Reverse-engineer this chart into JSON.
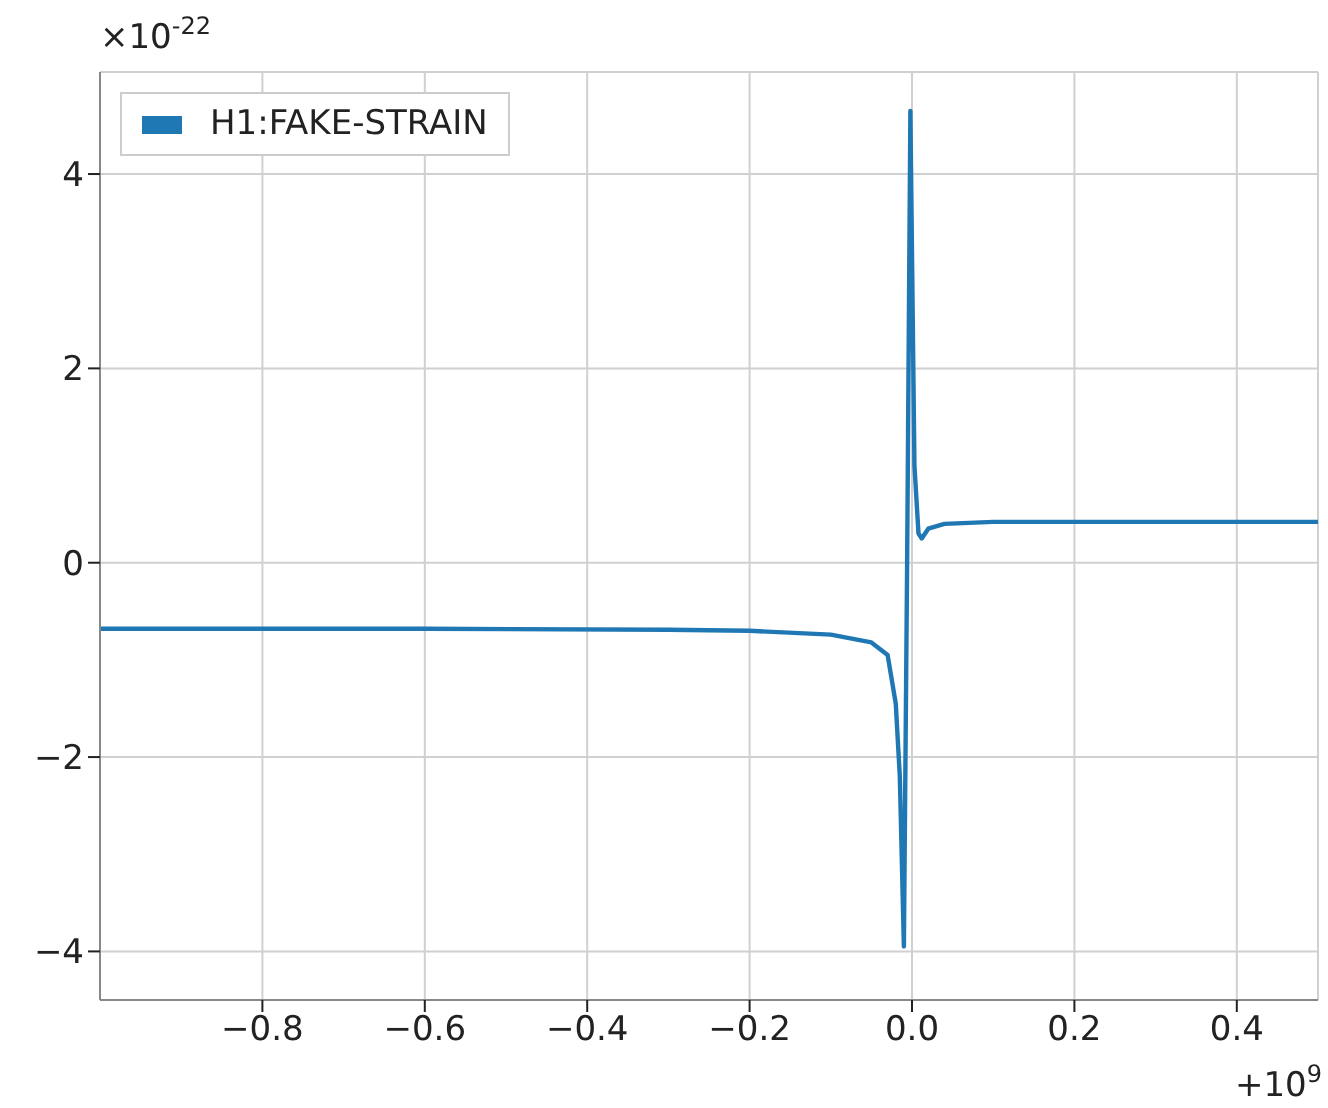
{
  "chart_data": {
    "type": "line",
    "annotations": [
      "×10$^{-22}$",
      "+10$^{9}$"
    ],
    "series": [
      {
        "name": "H1:FAKE-STRAIN",
        "color": "#1f77b4",
        "x": [
          -1.0,
          -0.6,
          -0.3,
          -0.2,
          -0.1,
          -0.05,
          -0.03,
          -0.02,
          -0.015,
          -0.01,
          -0.006,
          -0.002,
          0.003,
          0.008,
          0.012,
          0.02,
          0.04,
          0.1,
          0.5
        ],
        "values": [
          -0.68,
          -0.68,
          -0.69,
          -0.7,
          -0.74,
          -0.82,
          -0.95,
          -1.45,
          -2.2,
          -3.95,
          0,
          4.65,
          1.0,
          0.3,
          0.25,
          0.35,
          0.4,
          0.42,
          0.42
        ]
      }
    ],
    "xlim": [
      -1.0,
      0.5
    ],
    "xticks": [
      -0.8,
      -0.6,
      -0.4,
      -0.2,
      {
        "value": 0,
        "label": "0.0"
      },
      0.2,
      0.4
    ],
    "ylim": [
      -4.5,
      5.05
    ],
    "yticks": [
      -4,
      -2,
      0,
      2,
      4
    ],
    "grid": true,
    "legend": "top left",
    "line_style": "solid",
    "marker": "none"
  }
}
